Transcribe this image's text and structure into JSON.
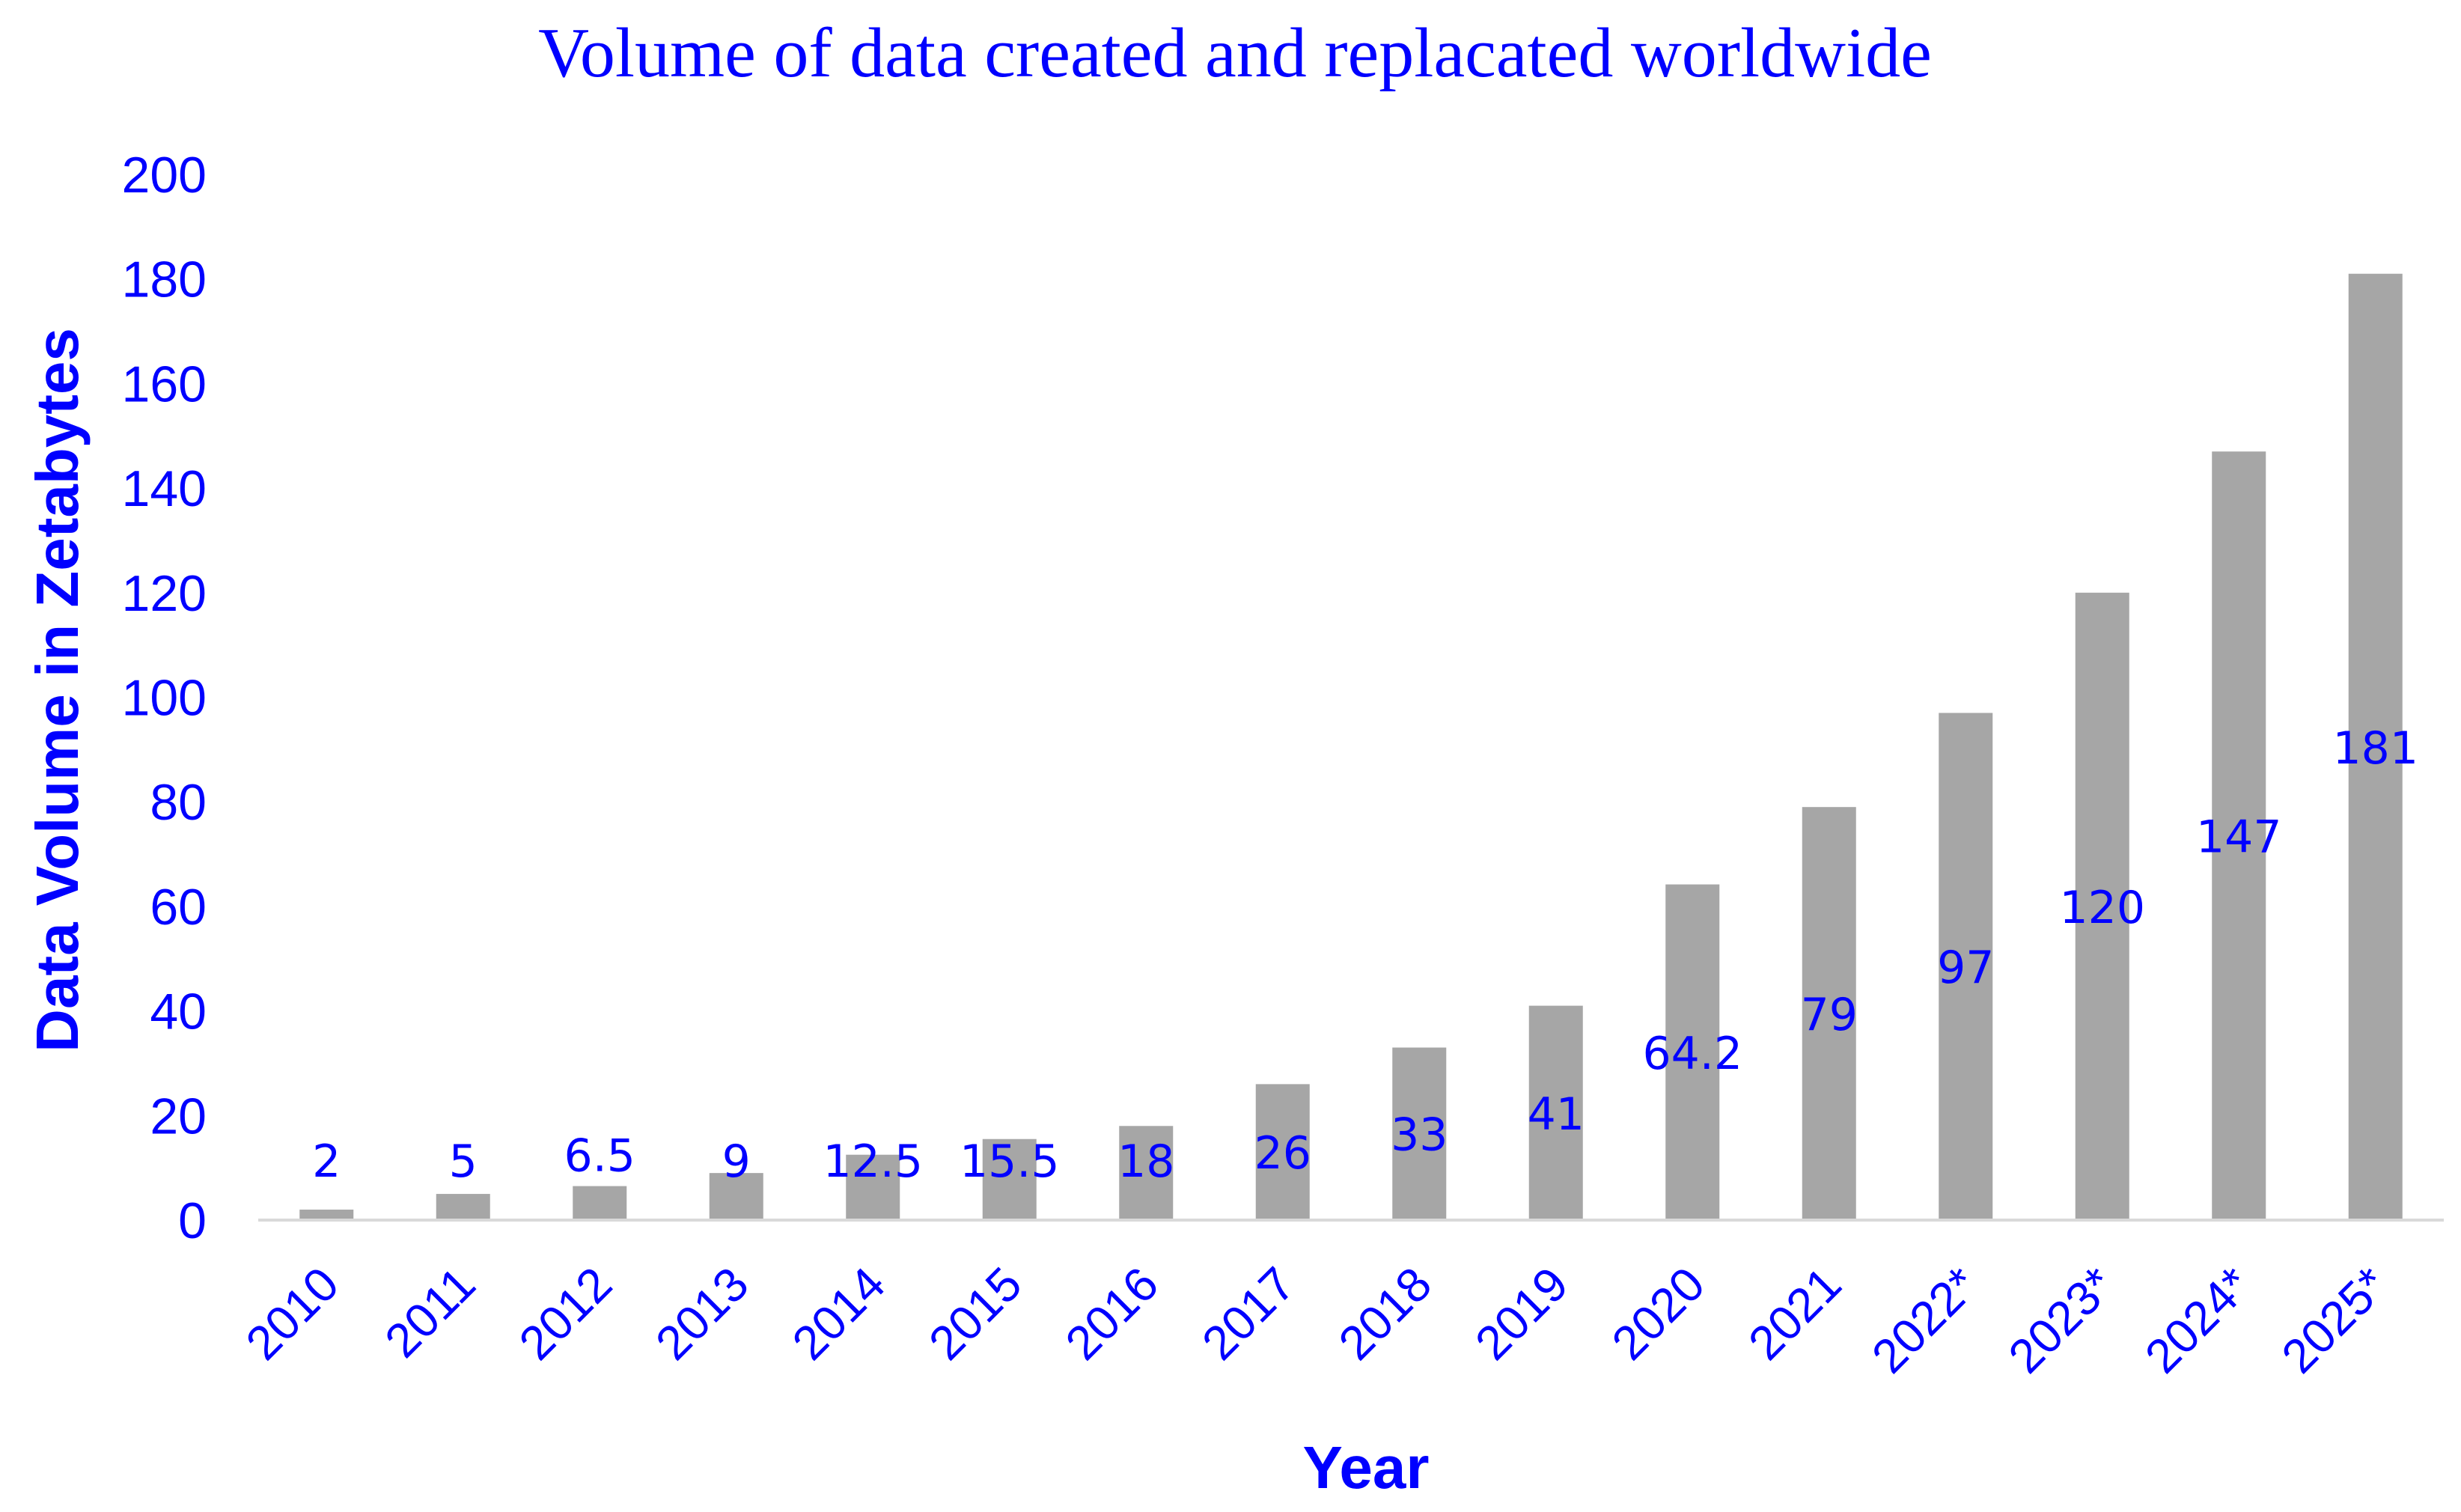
{
  "chart_data": {
    "type": "bar",
    "title": "Volume of data created and replacated worldwide",
    "xlabel": "Year",
    "ylabel": "Data Volume in Zetabytes",
    "categories": [
      "2010",
      "2011",
      "2012",
      "2013",
      "2014",
      "2015",
      "2016",
      "2017",
      "2018",
      "2019",
      "2020",
      "2021",
      "2022*",
      "2023*",
      "2024*",
      "2025*"
    ],
    "values": [
      2,
      5,
      6.5,
      9,
      12.5,
      15.5,
      18,
      26,
      33,
      41,
      64.2,
      79,
      97,
      120,
      147,
      181
    ],
    "data_labels": [
      "2",
      "5",
      "6.5",
      "9",
      "12.5",
      "15.5",
      "18",
      "26",
      "33",
      "41",
      "64.2",
      "79",
      "97",
      "120",
      "147",
      "181"
    ],
    "ylim": [
      0,
      200
    ],
    "yticks": [
      0,
      20,
      40,
      60,
      80,
      100,
      120,
      140,
      160,
      180,
      200
    ],
    "ytick_labels": [
      "0",
      "20",
      "40",
      "60",
      "80",
      "100",
      "120",
      "140",
      "160",
      "180",
      "200"
    ],
    "grid": false,
    "legend": "none"
  },
  "colors": {
    "bar": "#a6a6a6",
    "text": "#0000ff",
    "axis": "#d9d9d9",
    "background": "#ffffff"
  }
}
